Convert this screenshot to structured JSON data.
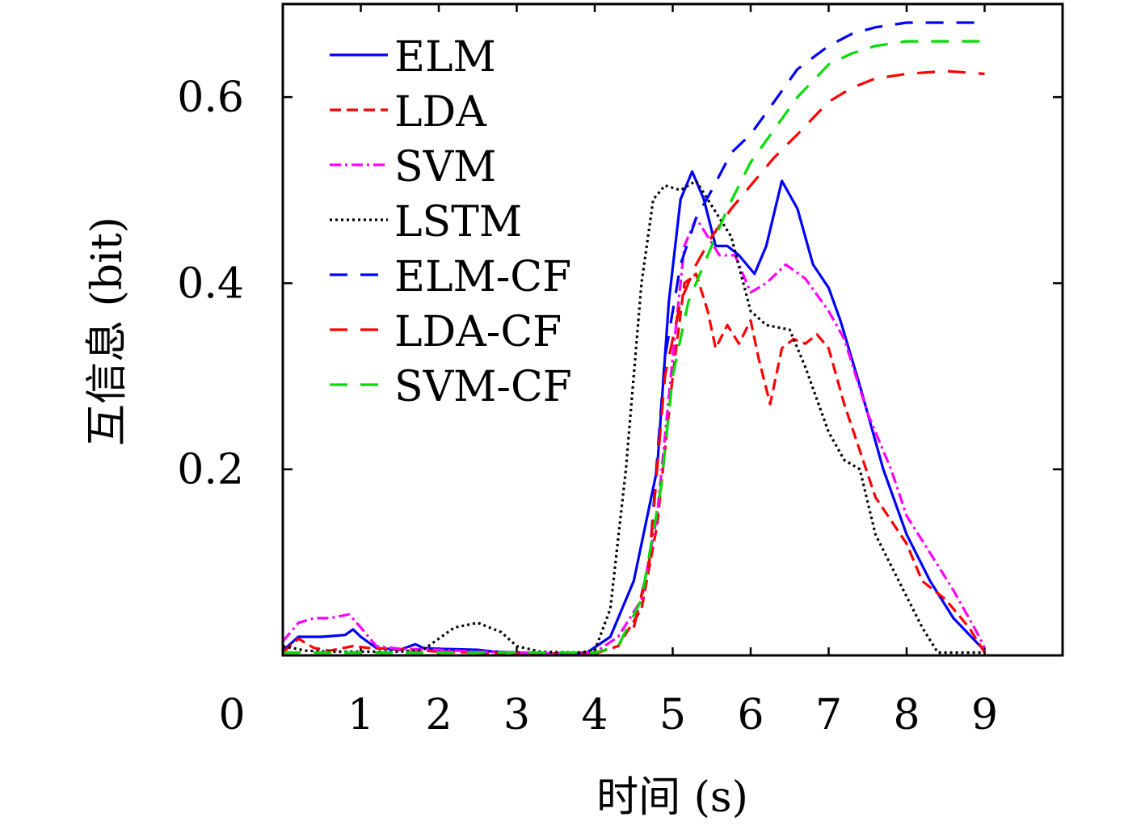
{
  "chart_data": {
    "type": "line",
    "title": "",
    "xlabel": "时间 (s)",
    "ylabel": "互信息 (bit)",
    "xlim": [
      0,
      10
    ],
    "ylim": [
      0,
      0.7
    ],
    "x_ticks": [
      {
        "value": 0,
        "label": "0"
      },
      {
        "value": 1,
        "label": "1"
      },
      {
        "value": 2,
        "label": "2"
      },
      {
        "value": 3,
        "label": "3"
      },
      {
        "value": 4,
        "label": "4"
      },
      {
        "value": 5,
        "label": "5"
      },
      {
        "value": 6,
        "label": "6"
      },
      {
        "value": 7,
        "label": "7"
      },
      {
        "value": 8,
        "label": "8"
      },
      {
        "value": 9,
        "label": "9"
      }
    ],
    "y_ticks": [
      {
        "value": 0.2,
        "label": "0.2"
      },
      {
        "value": 0.4,
        "label": "0.4"
      },
      {
        "value": 0.6,
        "label": "0.6"
      }
    ],
    "grid": false,
    "legend_position": "top-left",
    "series": [
      {
        "name": "ELM",
        "color": "#0000ff",
        "dash": "solid",
        "points": [
          [
            0,
            0.005
          ],
          [
            0.2,
            0.02
          ],
          [
            0.5,
            0.02
          ],
          [
            0.8,
            0.022
          ],
          [
            0.9,
            0.028
          ],
          [
            1.0,
            0.02
          ],
          [
            1.2,
            0.008
          ],
          [
            1.5,
            0.006
          ],
          [
            1.7,
            0.012
          ],
          [
            1.8,
            0.008
          ],
          [
            2.0,
            0.007
          ],
          [
            2.5,
            0.006
          ],
          [
            2.7,
            0.004
          ],
          [
            3.0,
            0.003
          ],
          [
            3.5,
            0.002
          ],
          [
            3.9,
            0.003
          ],
          [
            4.2,
            0.02
          ],
          [
            4.5,
            0.08
          ],
          [
            4.8,
            0.2
          ],
          [
            4.95,
            0.38
          ],
          [
            5.1,
            0.49
          ],
          [
            5.25,
            0.52
          ],
          [
            5.4,
            0.49
          ],
          [
            5.55,
            0.44
          ],
          [
            5.7,
            0.44
          ],
          [
            5.85,
            0.43
          ],
          [
            6.05,
            0.41
          ],
          [
            6.2,
            0.44
          ],
          [
            6.4,
            0.51
          ],
          [
            6.6,
            0.48
          ],
          [
            6.8,
            0.42
          ],
          [
            7.0,
            0.395
          ],
          [
            7.15,
            0.36
          ],
          [
            7.4,
            0.29
          ],
          [
            7.7,
            0.2
          ],
          [
            8.0,
            0.13
          ],
          [
            8.3,
            0.08
          ],
          [
            8.6,
            0.04
          ],
          [
            9.0,
            0.005
          ]
        ]
      },
      {
        "name": "LDA",
        "color": "#ff0000",
        "dash": "dashed",
        "points": [
          [
            0,
            0.003
          ],
          [
            0.2,
            0.018
          ],
          [
            0.4,
            0.008
          ],
          [
            0.6,
            0.005
          ],
          [
            0.9,
            0.01
          ],
          [
            1.1,
            0.008
          ],
          [
            1.4,
            0.007
          ],
          [
            1.7,
            0.006
          ],
          [
            2.0,
            0.004
          ],
          [
            2.5,
            0.003
          ],
          [
            3.0,
            0.002
          ],
          [
            3.5,
            0.002
          ],
          [
            4.0,
            0.002
          ],
          [
            4.3,
            0.01
          ],
          [
            4.6,
            0.05
          ],
          [
            4.8,
            0.14
          ],
          [
            5.0,
            0.3
          ],
          [
            5.15,
            0.4
          ],
          [
            5.3,
            0.41
          ],
          [
            5.45,
            0.37
          ],
          [
            5.55,
            0.33
          ],
          [
            5.7,
            0.355
          ],
          [
            5.85,
            0.335
          ],
          [
            6.0,
            0.36
          ],
          [
            6.1,
            0.32
          ],
          [
            6.25,
            0.27
          ],
          [
            6.4,
            0.33
          ],
          [
            6.55,
            0.34
          ],
          [
            6.7,
            0.335
          ],
          [
            6.85,
            0.345
          ],
          [
            7.0,
            0.33
          ],
          [
            7.2,
            0.27
          ],
          [
            7.4,
            0.22
          ],
          [
            7.6,
            0.17
          ],
          [
            7.8,
            0.145
          ],
          [
            8.0,
            0.12
          ],
          [
            8.2,
            0.08
          ],
          [
            8.5,
            0.06
          ],
          [
            8.8,
            0.03
          ],
          [
            9.0,
            0.003
          ]
        ]
      },
      {
        "name": "SVM",
        "color": "#ff00ff",
        "dash": "dashdot",
        "points": [
          [
            0,
            0.015
          ],
          [
            0.2,
            0.035
          ],
          [
            0.4,
            0.04
          ],
          [
            0.6,
            0.04
          ],
          [
            0.85,
            0.044
          ],
          [
            1.0,
            0.03
          ],
          [
            1.2,
            0.01
          ],
          [
            1.5,
            0.007
          ],
          [
            2.0,
            0.006
          ],
          [
            2.5,
            0.004
          ],
          [
            3.0,
            0.003
          ],
          [
            3.5,
            0.002
          ],
          [
            4.0,
            0.003
          ],
          [
            4.3,
            0.02
          ],
          [
            4.6,
            0.06
          ],
          [
            4.8,
            0.15
          ],
          [
            5.0,
            0.32
          ],
          [
            5.15,
            0.44
          ],
          [
            5.3,
            0.47
          ],
          [
            5.45,
            0.45
          ],
          [
            5.6,
            0.43
          ],
          [
            5.8,
            0.43
          ],
          [
            6.0,
            0.39
          ],
          [
            6.2,
            0.4
          ],
          [
            6.45,
            0.42
          ],
          [
            6.7,
            0.405
          ],
          [
            7.0,
            0.37
          ],
          [
            7.2,
            0.34
          ],
          [
            7.5,
            0.26
          ],
          [
            7.8,
            0.2
          ],
          [
            8.0,
            0.15
          ],
          [
            8.3,
            0.11
          ],
          [
            8.6,
            0.07
          ],
          [
            8.9,
            0.025
          ],
          [
            9.0,
            0.008
          ]
        ]
      },
      {
        "name": "LSTM",
        "color": "#000000",
        "dash": "dotted",
        "points": [
          [
            0,
            0.01
          ],
          [
            0.3,
            0.005
          ],
          [
            0.6,
            0.004
          ],
          [
            1.0,
            0.004
          ],
          [
            1.5,
            0.004
          ],
          [
            1.8,
            0.006
          ],
          [
            2.2,
            0.03
          ],
          [
            2.5,
            0.035
          ],
          [
            2.8,
            0.025
          ],
          [
            3.0,
            0.01
          ],
          [
            3.3,
            0.004
          ],
          [
            3.8,
            0.003
          ],
          [
            4.0,
            0.005
          ],
          [
            4.2,
            0.05
          ],
          [
            4.4,
            0.2
          ],
          [
            4.6,
            0.4
          ],
          [
            4.75,
            0.49
          ],
          [
            4.9,
            0.505
          ],
          [
            5.1,
            0.5
          ],
          [
            5.3,
            0.51
          ],
          [
            5.45,
            0.49
          ],
          [
            5.6,
            0.47
          ],
          [
            5.75,
            0.45
          ],
          [
            6.0,
            0.37
          ],
          [
            6.2,
            0.355
          ],
          [
            6.5,
            0.35
          ],
          [
            6.7,
            0.31
          ],
          [
            7.0,
            0.24
          ],
          [
            7.2,
            0.21
          ],
          [
            7.4,
            0.2
          ],
          [
            7.6,
            0.13
          ],
          [
            7.9,
            0.08
          ],
          [
            8.2,
            0.03
          ],
          [
            8.4,
            0.003
          ],
          [
            9.0,
            0.003
          ]
        ]
      },
      {
        "name": "ELM-CF",
        "color": "#0000ff",
        "dash": "longdash",
        "points": [
          [
            4.5,
            0.03
          ],
          [
            4.7,
            0.1
          ],
          [
            4.9,
            0.32
          ],
          [
            5.1,
            0.42
          ],
          [
            5.3,
            0.47
          ],
          [
            5.5,
            0.5
          ],
          [
            5.75,
            0.54
          ],
          [
            6.0,
            0.56
          ],
          [
            6.3,
            0.595
          ],
          [
            6.6,
            0.63
          ],
          [
            7.0,
            0.655
          ],
          [
            7.3,
            0.668
          ],
          [
            7.6,
            0.675
          ],
          [
            8.0,
            0.68
          ],
          [
            8.5,
            0.68
          ],
          [
            9.0,
            0.68
          ]
        ]
      },
      {
        "name": "LDA-CF",
        "color": "#ff0000",
        "dash": "longdash",
        "points": [
          [
            4.5,
            0.03
          ],
          [
            4.7,
            0.1
          ],
          [
            4.9,
            0.3
          ],
          [
            5.1,
            0.38
          ],
          [
            5.3,
            0.42
          ],
          [
            5.5,
            0.45
          ],
          [
            5.75,
            0.48
          ],
          [
            6.0,
            0.505
          ],
          [
            6.3,
            0.535
          ],
          [
            6.6,
            0.56
          ],
          [
            7.0,
            0.595
          ],
          [
            7.3,
            0.61
          ],
          [
            7.6,
            0.62
          ],
          [
            8.0,
            0.625
          ],
          [
            8.5,
            0.628
          ],
          [
            9.0,
            0.625
          ]
        ]
      },
      {
        "name": "SVM-CF",
        "color": "#00dd00",
        "dash": "longdash",
        "points": [
          [
            0,
            0.003
          ],
          [
            1.0,
            0.003
          ],
          [
            2.0,
            0.003
          ],
          [
            3.0,
            0.003
          ],
          [
            4.0,
            0.003
          ],
          [
            4.3,
            0.01
          ],
          [
            4.6,
            0.06
          ],
          [
            4.85,
            0.18
          ],
          [
            5.0,
            0.3
          ],
          [
            5.2,
            0.38
          ],
          [
            5.45,
            0.43
          ],
          [
            5.7,
            0.48
          ],
          [
            6.0,
            0.53
          ],
          [
            6.3,
            0.565
          ],
          [
            6.6,
            0.6
          ],
          [
            7.0,
            0.635
          ],
          [
            7.3,
            0.647
          ],
          [
            7.6,
            0.655
          ],
          [
            8.0,
            0.66
          ],
          [
            8.5,
            0.66
          ],
          [
            9.0,
            0.66
          ]
        ]
      }
    ]
  }
}
